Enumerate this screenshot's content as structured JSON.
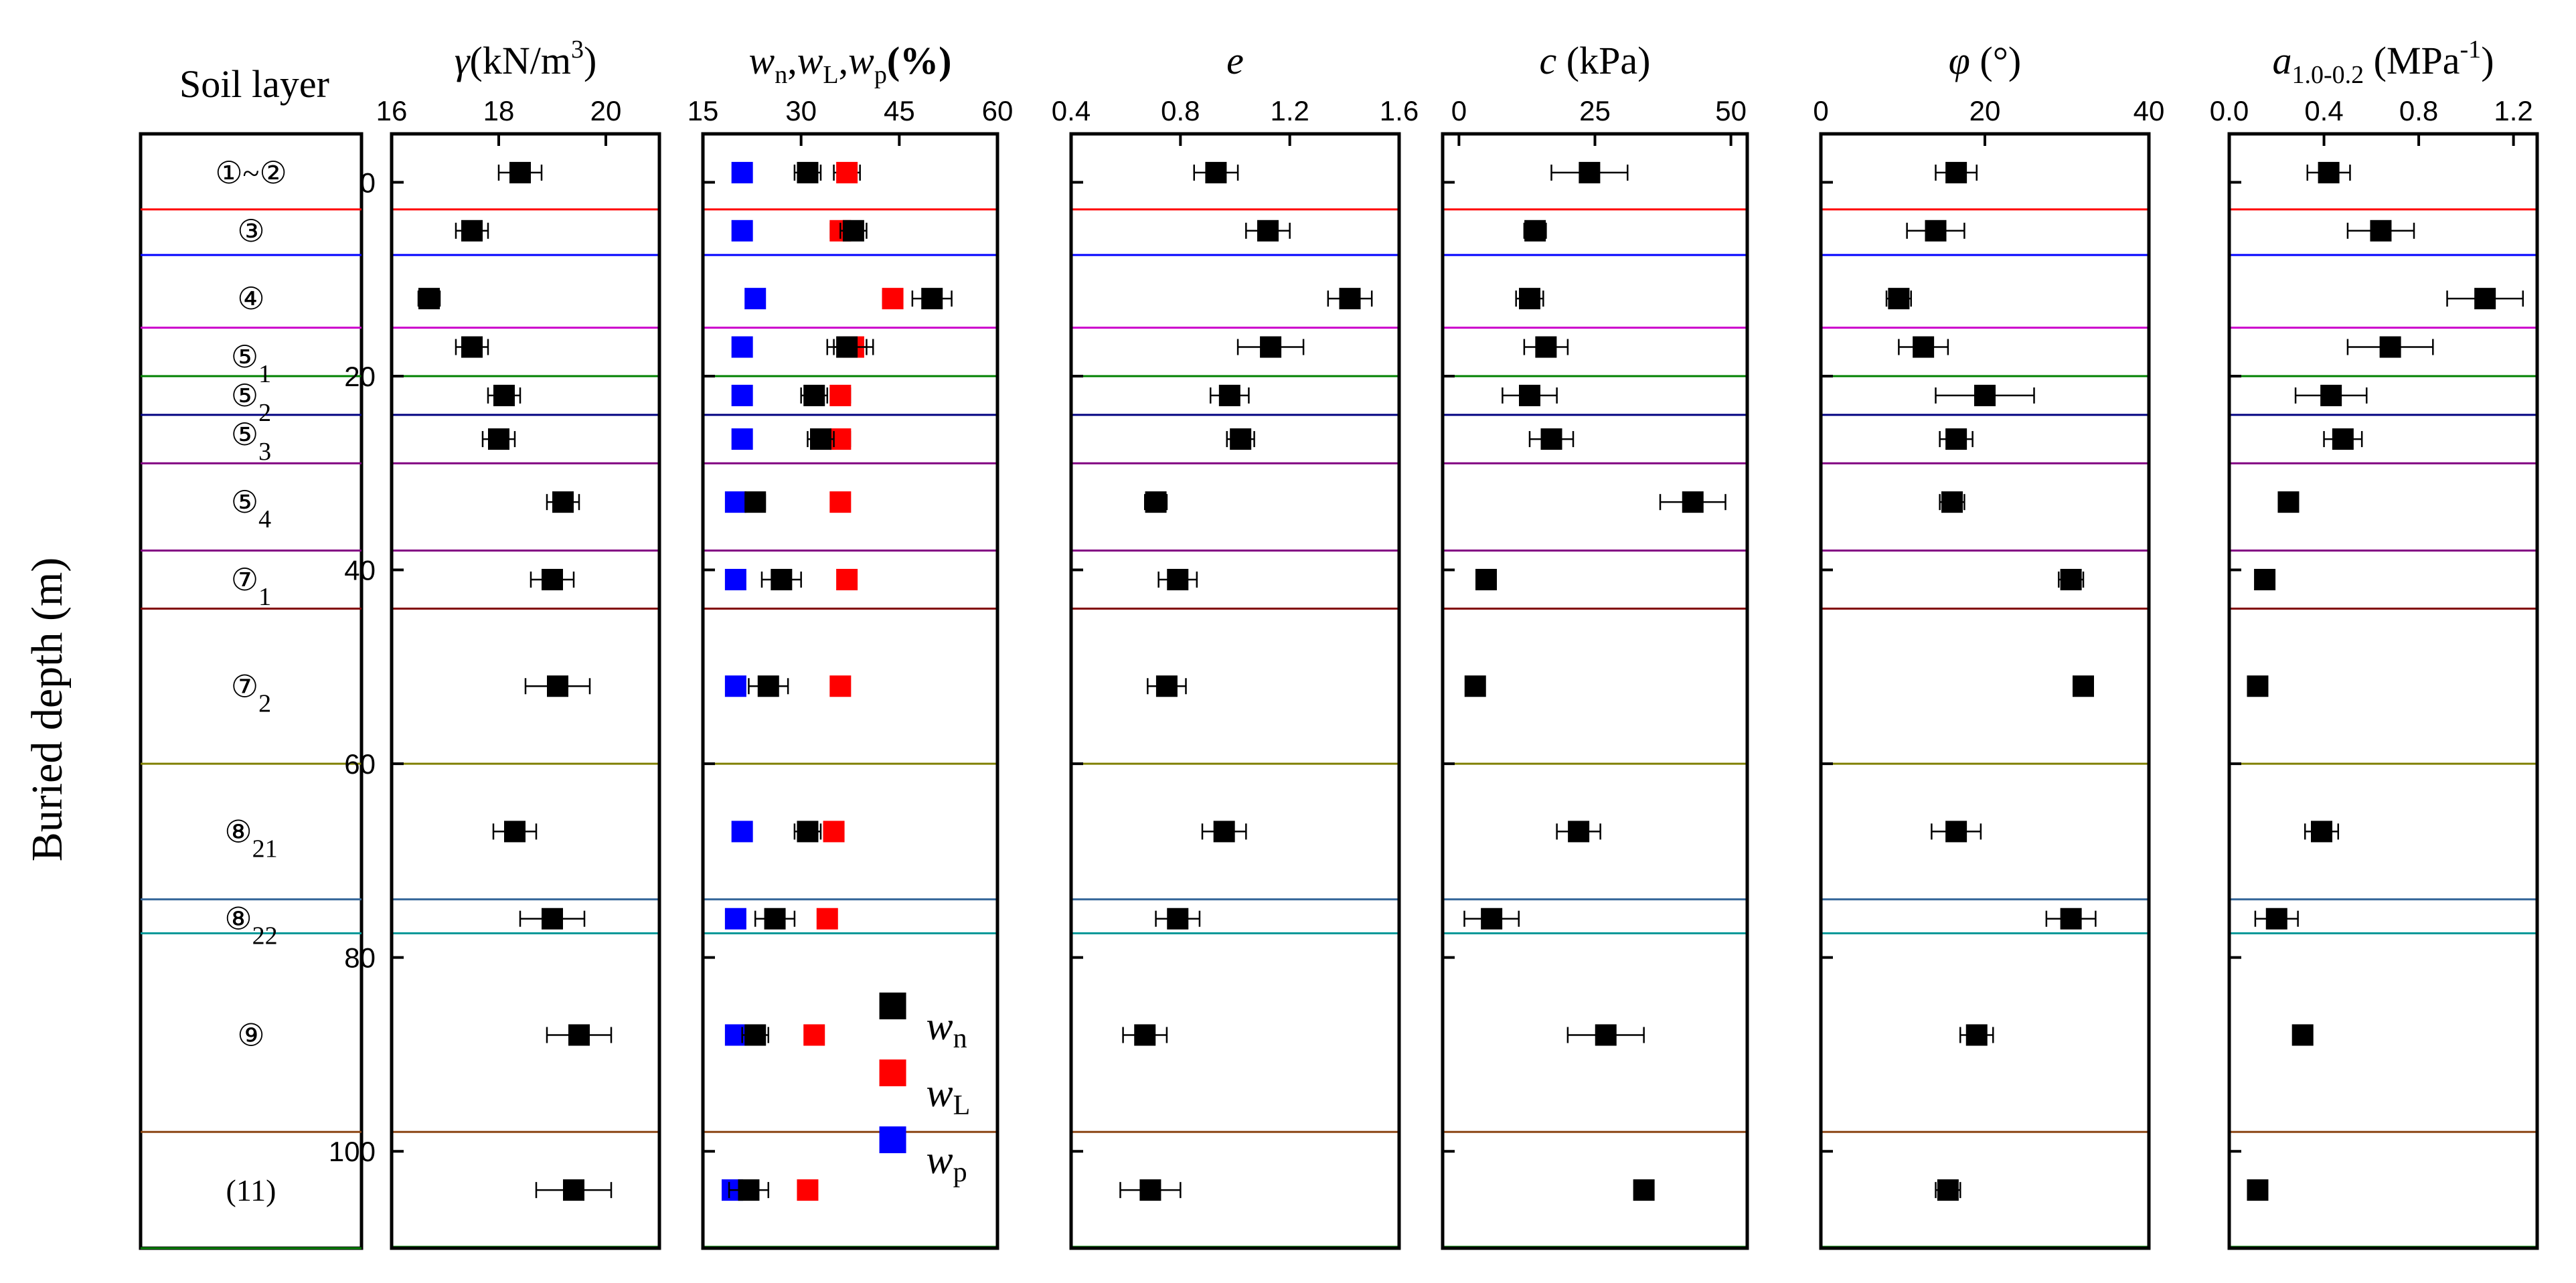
{
  "page": {
    "y_label": "Buried depth (m)",
    "soil_header": "Soil layer"
  },
  "chart_data": {
    "type": "scatter",
    "ylim": [
      -5,
      110
    ],
    "y_ticks": [
      0,
      20,
      40,
      60,
      80,
      100
    ],
    "layers": [
      {
        "label": "①~②",
        "top": -5,
        "bottom": 2.8,
        "mid": -1,
        "color": "#ff0000"
      },
      {
        "label": "③",
        "top": 2.8,
        "bottom": 7.5,
        "mid": 5,
        "color": "#0000ff"
      },
      {
        "label": "④",
        "top": 7.5,
        "bottom": 15,
        "mid": 12,
        "color": "#cc00cc"
      },
      {
        "label": "⑤1",
        "top": 15,
        "bottom": 20,
        "mid": 18,
        "color": "#008000"
      },
      {
        "label": "⑤2",
        "top": 20,
        "bottom": 24,
        "mid": 22,
        "color": "#000080"
      },
      {
        "label": "⑤3",
        "top": 24,
        "bottom": 29,
        "mid": 26,
        "color": "#800080"
      },
      {
        "label": "⑤4",
        "top": 29,
        "bottom": 38,
        "mid": 33,
        "color": "#800080"
      },
      {
        "label": "⑦1",
        "top": 38,
        "bottom": 44,
        "mid": 41,
        "color": "#800000"
      },
      {
        "label": "⑦2",
        "top": 44,
        "bottom": 60,
        "mid": 52,
        "color": "#808000"
      },
      {
        "label": "⑧21",
        "top": 60,
        "bottom": 74,
        "mid": 67,
        "color": "#336699"
      },
      {
        "label": "⑧22",
        "top": 74,
        "bottom": 77.5,
        "mid": 76,
        "color": "#009999"
      },
      {
        "label": "⑨",
        "top": 77.5,
        "bottom": 98,
        "mid": 88,
        "color": "#8b4513"
      },
      {
        "label": "(11)",
        "top": 98,
        "bottom": 110,
        "mid": 104,
        "color": "#008000"
      }
    ],
    "depths": [
      -1,
      5,
      12,
      17,
      22,
      26.5,
      33,
      41,
      52,
      67,
      76,
      88,
      104
    ],
    "panels": [
      {
        "title": "γ(kN/m³)",
        "xlim": [
          16,
          21
        ],
        "x_ticks": [
          16,
          18,
          20
        ],
        "series": [
          {
            "name": "γ",
            "color": "#000000",
            "values": [
              18.4,
              17.5,
              16.7,
              17.5,
              18.1,
              18.0,
              19.2,
              19.0,
              19.1,
              18.3,
              19.0,
              19.5,
              19.4
            ],
            "errors": [
              0.4,
              0.3,
              0.2,
              0.3,
              0.3,
              0.3,
              0.3,
              0.4,
              0.6,
              0.4,
              0.6,
              0.6,
              0.7
            ]
          }
        ]
      },
      {
        "title": "wn,wL,wp(%)",
        "xlim": [
          15,
          60
        ],
        "x_ticks": [
          15,
          30,
          45,
          60
        ],
        "legend": [
          "wn",
          "wL",
          "wp"
        ],
        "series": [
          {
            "name": "wn",
            "color": "#000000",
            "values": [
              31,
              38,
              50,
              37,
              32,
              33,
              23,
              27,
              25,
              31,
              26,
              23,
              22
            ],
            "errors": [
              2,
              2,
              3,
              3,
              2,
              2,
              1.5,
              3,
              3,
              2,
              3,
              2,
              3
            ]
          },
          {
            "name": "wL",
            "color": "#ff0000",
            "values": [
              37,
              36,
              44,
              38,
              36,
              36,
              36,
              37,
              36,
              35,
              34,
              32,
              31
            ],
            "errors": [
              2,
              1.5,
              1.5,
              3,
              1.5,
              1.5,
              1,
              1,
              1,
              1.5,
              1,
              1,
              1
            ]
          },
          {
            "name": "wp",
            "color": "#0000ff",
            "values": [
              21,
              21,
              23,
              21,
              21,
              21,
              20,
              20,
              20,
              21,
              20,
              20,
              19.5
            ],
            "errors": [
              0,
              0,
              0,
              0,
              0,
              0,
              0,
              0,
              0,
              0,
              0,
              0,
              0
            ]
          }
        ]
      },
      {
        "title": "e",
        "xlim": [
          0.4,
          1.6
        ],
        "x_ticks": [
          0.4,
          0.8,
          1.2,
          1.6
        ],
        "series": [
          {
            "name": "e",
            "color": "#000000",
            "values": [
              0.93,
              1.12,
              1.42,
              1.13,
              0.98,
              1.02,
              0.71,
              0.79,
              0.75,
              0.96,
              0.79,
              0.67,
              0.69
            ],
            "errors": [
              0.08,
              0.08,
              0.08,
              0.12,
              0.07,
              0.05,
              0.04,
              0.07,
              0.07,
              0.08,
              0.08,
              0.08,
              0.11
            ]
          }
        ]
      },
      {
        "title": "c (kPa)",
        "xlim": [
          -3,
          53
        ],
        "x_ticks": [
          0,
          25,
          50
        ],
        "series": [
          {
            "name": "c",
            "color": "#000000",
            "values": [
              24,
              14,
              13,
              16,
              13,
              17,
              43,
              5,
              3,
              22,
              6,
              27,
              34
            ],
            "errors": [
              7,
              2,
              2.5,
              4,
              5,
              4,
              6,
              1,
              1,
              4,
              5,
              7,
              0
            ]
          }
        ]
      },
      {
        "title": "φ (°)",
        "xlim": [
          0,
          40
        ],
        "x_ticks": [
          0,
          20,
          40
        ],
        "series": [
          {
            "name": "φ",
            "color": "#000000",
            "values": [
              16.5,
              14,
              9.5,
              12.5,
              20,
              16.5,
              16,
              30.5,
              32,
              16.5,
              30.5,
              19,
              15.5
            ],
            "errors": [
              2.5,
              3.5,
              1.5,
              3,
              6,
              2,
              1.5,
              1.5,
              1,
              3,
              3,
              2,
              1.5
            ]
          }
        ]
      },
      {
        "title": "a1.0-0.2 (MPa-1)",
        "xlim": [
          0,
          1.3
        ],
        "x_ticks": [
          0,
          0.4,
          0.8,
          1.2
        ],
        "tick_labels": [
          "0.0",
          "0.4",
          "0.8",
          "1.2"
        ],
        "series": [
          {
            "name": "a1.0-0.2",
            "color": "#000000",
            "values": [
              0.42,
              0.64,
              1.08,
              0.68,
              0.43,
              0.48,
              0.25,
              0.15,
              0.12,
              0.39,
              0.2,
              0.31,
              0.12
            ],
            "errors": [
              0.09,
              0.14,
              0.16,
              0.18,
              0.15,
              0.08,
              0.04,
              0.04,
              0.02,
              0.07,
              0.09,
              0.02,
              0.02
            ]
          }
        ]
      }
    ]
  }
}
